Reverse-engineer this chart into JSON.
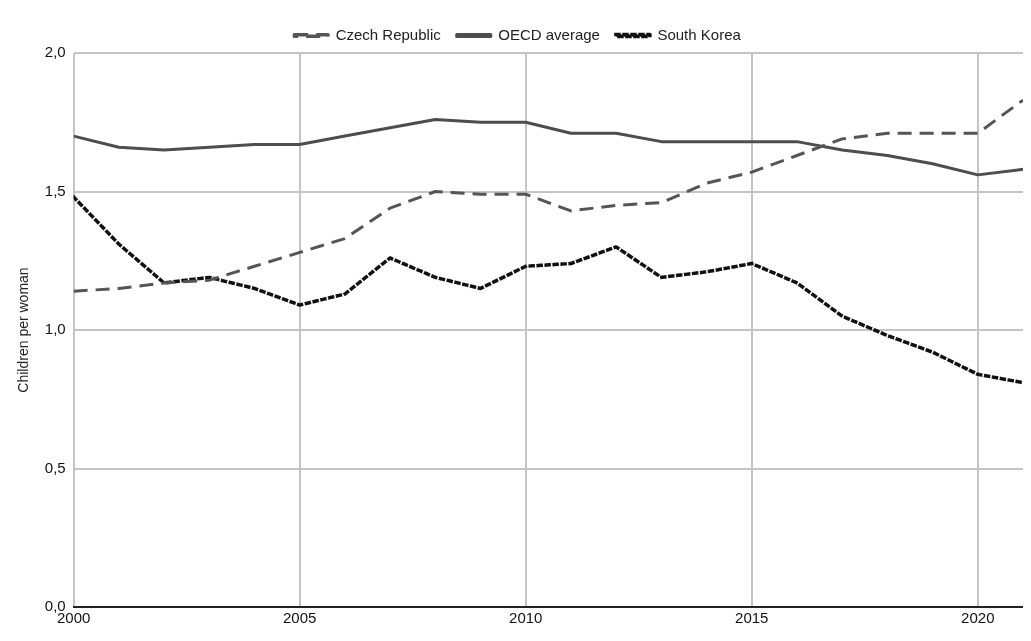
{
  "chart_data": {
    "type": "line",
    "ylabel": "Children per woman",
    "x": [
      2000,
      2001,
      2002,
      2003,
      2004,
      2005,
      2006,
      2007,
      2008,
      2009,
      2010,
      2011,
      2012,
      2013,
      2014,
      2015,
      2016,
      2017,
      2018,
      2019,
      2020,
      2021
    ],
    "series": [
      {
        "name": "Czech Republic",
        "color": "#555555",
        "line_style": "dashed",
        "values": [
          1.14,
          1.15,
          1.17,
          1.18,
          1.23,
          1.28,
          1.33,
          1.44,
          1.5,
          1.49,
          1.49,
          1.43,
          1.45,
          1.46,
          1.53,
          1.57,
          1.63,
          1.69,
          1.71,
          1.71,
          1.71,
          1.83
        ]
      },
      {
        "name": "OECD average",
        "color": "#4d4d4d",
        "line_style": "solid",
        "values": [
          1.7,
          1.66,
          1.65,
          1.66,
          1.67,
          1.67,
          1.7,
          1.73,
          1.76,
          1.75,
          1.75,
          1.71,
          1.71,
          1.68,
          1.68,
          1.68,
          1.68,
          1.65,
          1.63,
          1.6,
          1.56,
          1.58
        ]
      },
      {
        "name": "South Korea",
        "color": "#111111",
        "line_style": "dotted",
        "values": [
          1.48,
          1.31,
          1.17,
          1.19,
          1.15,
          1.09,
          1.13,
          1.26,
          1.19,
          1.15,
          1.23,
          1.24,
          1.3,
          1.19,
          1.21,
          1.24,
          1.17,
          1.05,
          0.98,
          0.92,
          0.84,
          0.81
        ]
      }
    ],
    "xlim": [
      2000,
      2021
    ],
    "xticks": [
      2000,
      2005,
      2010,
      2015,
      2020
    ],
    "ylim": [
      0,
      2
    ],
    "yticks": [
      {
        "value": 0,
        "label": "0,0"
      },
      {
        "value": 0.5,
        "label": "0,5"
      },
      {
        "value": 1,
        "label": "1,0"
      },
      {
        "value": 1.5,
        "label": "1,5"
      },
      {
        "value": 2,
        "label": "2,0"
      }
    ],
    "grid": true,
    "legend": "top",
    "marker": "none"
  }
}
